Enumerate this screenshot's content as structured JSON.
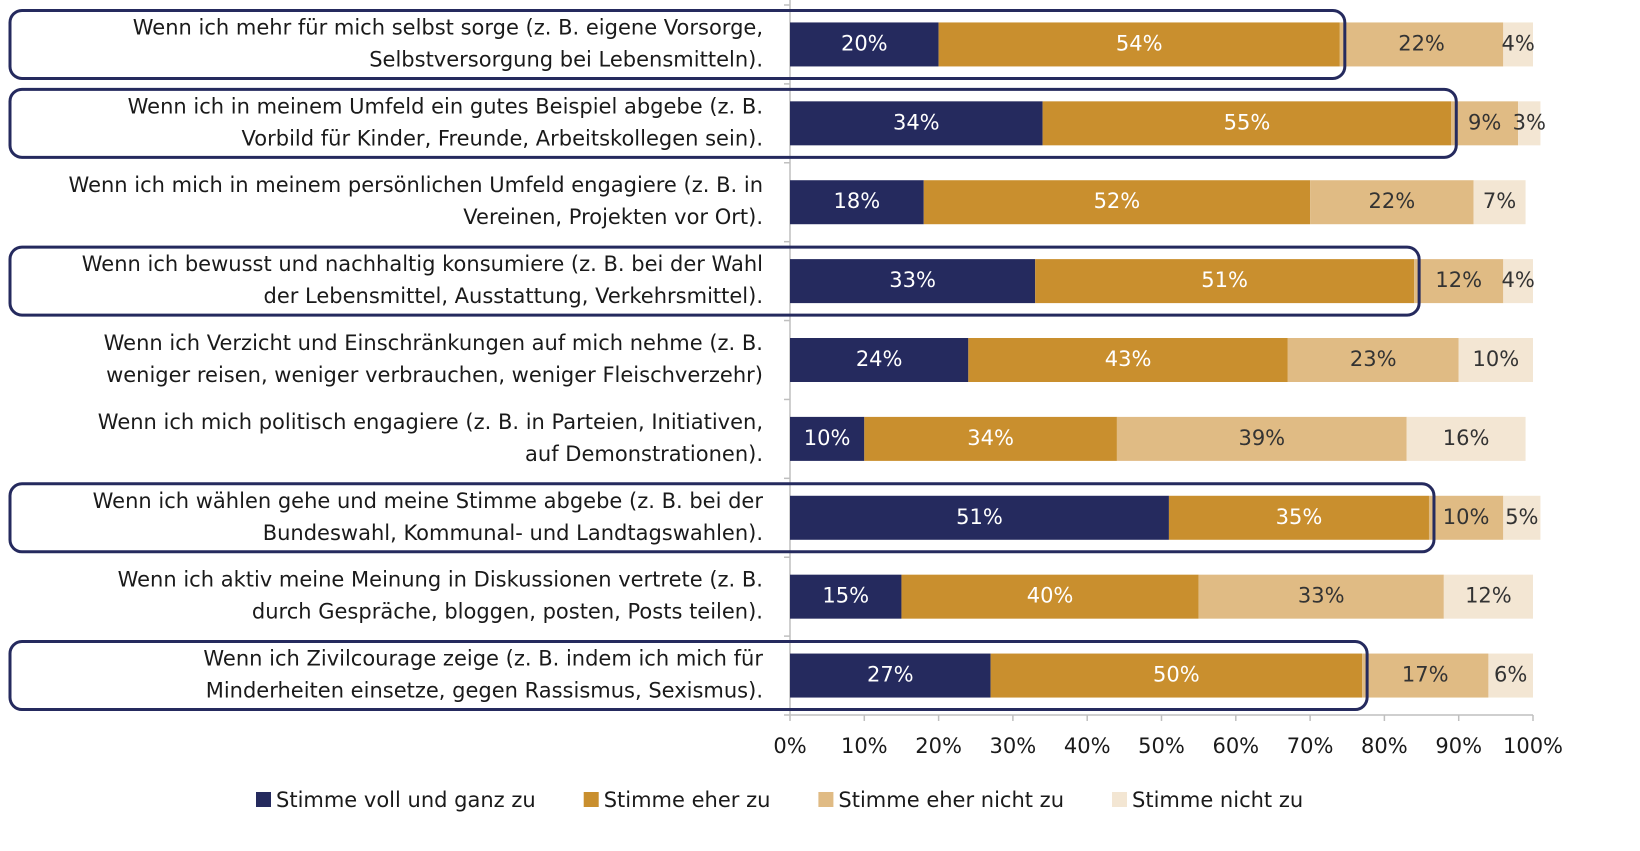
{
  "chart_data": {
    "type": "stacked_barh",
    "categories": [
      [
        "Wenn ich mehr für mich selbst sorge (z. B. eigene Vorsorge,",
        "Selbstversorgung bei Lebensmitteln)."
      ],
      [
        "Wenn ich in meinem Umfeld ein gutes Beispiel abgebe (z. B.",
        "Vorbild für Kinder, Freunde, Arbeitskollegen sein)."
      ],
      [
        "Wenn ich mich in meinem persönlichen Umfeld engagiere (z. B. in",
        "Vereinen, Projekten vor Ort)."
      ],
      [
        "Wenn ich bewusst und nachhaltig konsumiere (z. B. bei der Wahl",
        "der Lebensmittel, Ausstattung, Verkehrsmittel)."
      ],
      [
        "Wenn ich Verzicht und Einschränkungen auf mich nehme (z. B.",
        "weniger reisen, weniger verbrauchen, weniger Fleischverzehr)"
      ],
      [
        "Wenn ich mich politisch engagiere (z. B. in Parteien, Initiativen,",
        "auf Demonstrationen)."
      ],
      [
        "Wenn ich wählen gehe und meine Stimme abgebe (z. B. bei der",
        "Bundeswahl, Kommunal- und Landtagswahlen)."
      ],
      [
        "Wenn ich aktiv meine Meinung in Diskussionen vertrete (z. B.",
        "durch Gespräche, bloggen, posten, Posts teilen)."
      ],
      [
        "Wenn ich Zivilcourage zeige (z. B. indem ich mich für",
        "Minderheiten einsetze, gegen Rassismus, Sexismus)."
      ]
    ],
    "series": [
      {
        "name": "Stimme voll und ganz zu",
        "color": "#252a5e",
        "label_color": "#ffffff",
        "values": [
          20,
          34,
          18,
          33,
          24,
          10,
          51,
          15,
          27
        ],
        "value_labels": [
          "20%",
          "34%",
          "18%",
          "33%",
          "24%",
          "10%",
          "51%",
          "15%",
          "27%"
        ]
      },
      {
        "name": "Stimme eher zu",
        "color": "#c98f2e",
        "label_color": "#ffffff",
        "values": [
          54,
          55,
          52,
          51,
          43,
          34,
          35,
          40,
          50
        ],
        "value_labels": [
          "54%",
          "55%",
          "52%",
          "51%",
          "43%",
          "34%",
          "35%",
          "40%",
          "50%"
        ]
      },
      {
        "name": "Stimme eher nicht zu",
        "color": "#e0bb84",
        "label_color": "#333333",
        "values": [
          22,
          9,
          22,
          12,
          23,
          39,
          10,
          33,
          17
        ],
        "value_labels": [
          "22%",
          "9%",
          "22%",
          "12%",
          "23%",
          "39%",
          "10%",
          "33%",
          "17%"
        ]
      },
      {
        "name": "Stimme nicht zu",
        "color": "#f3e6d3",
        "label_color": "#333333",
        "values": [
          4,
          3,
          7,
          4,
          10,
          16,
          5,
          12,
          6
        ],
        "value_labels": [
          "4%",
          "3%",
          "7%",
          "4%",
          "10%",
          "16%",
          "5%",
          "12%",
          "6%"
        ]
      }
    ],
    "highlight": [
      true,
      true,
      false,
      true,
      false,
      false,
      true,
      false,
      true
    ],
    "highlight_color": "#252a5e",
    "xlim": [
      0,
      100
    ],
    "xticks": [
      {
        "value": 0,
        "label": "0%"
      },
      {
        "value": 10,
        "label": "10%"
      },
      {
        "value": 20,
        "label": "20%"
      },
      {
        "value": 30,
        "label": "30%"
      },
      {
        "value": 40,
        "label": "40%"
      },
      {
        "value": 50,
        "label": "50%"
      },
      {
        "value": 60,
        "label": "60%"
      },
      {
        "value": 70,
        "label": "70%"
      },
      {
        "value": 80,
        "label": "80%"
      },
      {
        "value": 90,
        "label": "90%"
      },
      {
        "value": 100,
        "label": "100%"
      }
    ],
    "legend": "bottom"
  }
}
